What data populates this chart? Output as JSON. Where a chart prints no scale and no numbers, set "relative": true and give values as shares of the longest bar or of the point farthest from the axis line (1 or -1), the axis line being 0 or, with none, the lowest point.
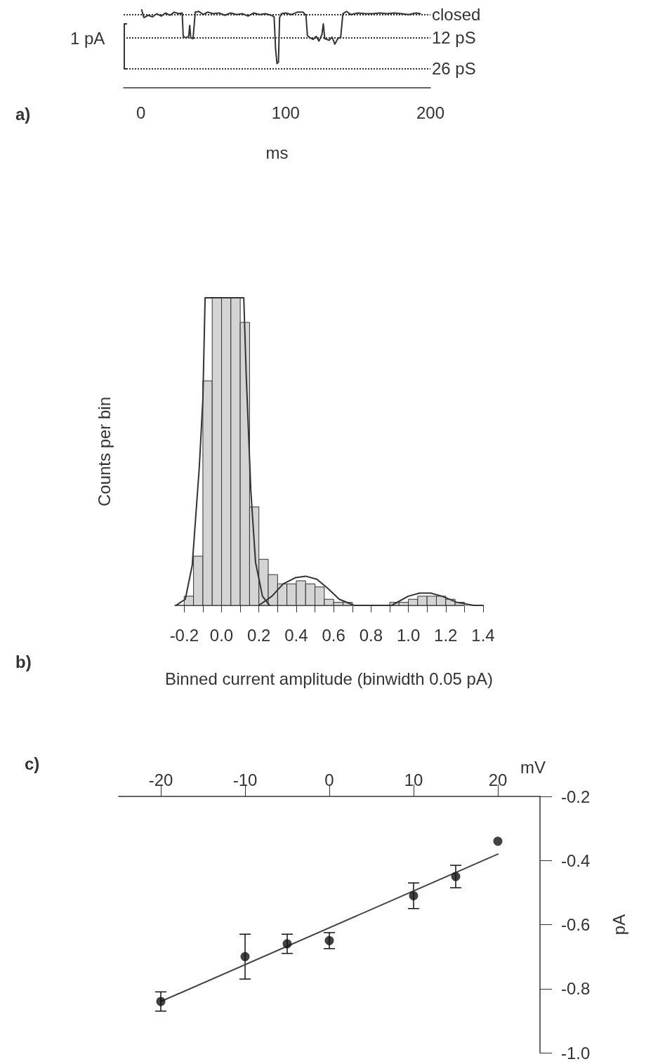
{
  "chart_data": [
    {
      "type": "line",
      "annotations": [
        "a)",
        "1 pA"
      ],
      "xlabel": "ms",
      "relative": true,
      "tick_labels": "x",
      "marker": "none",
      "color": "#333333",
      "xlim": [
        -12,
        200
      ],
      "xticks": [
        0,
        100,
        200
      ],
      "x": [
        0.5,
        2,
        5,
        8,
        11,
        14,
        17,
        20,
        23,
        26,
        28.5,
        29.2,
        31,
        33,
        33.7,
        34.4,
        36,
        37.5,
        40,
        43,
        46,
        50,
        54,
        58,
        62,
        66,
        70,
        74,
        78,
        82,
        86,
        90,
        92,
        93,
        94,
        95,
        95.8,
        97,
        100,
        104,
        108,
        112,
        114,
        115,
        117,
        119,
        121,
        123,
        125,
        126,
        127,
        130,
        132,
        134,
        136,
        138,
        139.5,
        142,
        145,
        150,
        155,
        160,
        165,
        170,
        175,
        180,
        185,
        190,
        193
      ],
      "values": [
        1,
        0.9,
        0.93,
        0.91,
        0.95,
        0.92,
        0.96,
        0.93,
        0.97,
        0.95,
        0.96,
        0.66,
        0.64,
        0.66,
        0.8,
        0.64,
        0.63,
        0.97,
        0.98,
        0.94,
        0.97,
        0.95,
        0.96,
        0.93,
        0.96,
        0.94,
        0.95,
        0.92,
        0.96,
        0.94,
        0.95,
        0.93,
        0.91,
        0.5,
        0.31,
        0.33,
        0.9,
        0.95,
        0.96,
        0.94,
        0.97,
        0.97,
        0.93,
        0.67,
        0.64,
        0.62,
        0.66,
        0.6,
        0.68,
        0.82,
        0.63,
        0.61,
        0.65,
        0.56,
        0.63,
        0.65,
        0.95,
        0.98,
        0.94,
        0.96,
        0.95,
        0.95,
        0.96,
        0.95,
        0.96,
        0.95,
        0.94,
        0.96,
        0.95
      ],
      "ref_lines": [
        {
          "axis": "y",
          "value": 0.94,
          "label": "closed",
          "line_style": "dotted",
          "color": "#333333"
        },
        {
          "axis": "y",
          "value": 0.64,
          "label": "12 pS",
          "line_style": "dotted",
          "color": "#333333"
        },
        {
          "axis": "y",
          "value": 0.25,
          "label": "26 pS",
          "line_style": "dotted",
          "color": "#333333"
        }
      ]
    },
    {
      "type": "histogram",
      "annotations": [
        "b)"
      ],
      "xlabel": "Binned current amplitude (binwidth 0.05 pA)",
      "ylabel": "Counts per bin",
      "relative": true,
      "tick_labels": "x",
      "color": "#d4d4d4",
      "xlim": [
        -0.25,
        1.4
      ],
      "xticks": [
        {
          "value": -0.2,
          "label": "-0.2"
        },
        {
          "value": -0.1,
          "label": null
        },
        {
          "value": 0,
          "label": "0.0"
        },
        {
          "value": 0.1,
          "label": null
        },
        0.2,
        {
          "value": 0.3,
          "label": null
        },
        0.4,
        {
          "value": 0.5,
          "label": null
        },
        0.6,
        {
          "value": 0.7,
          "label": null
        },
        0.8,
        {
          "value": 0.9,
          "label": null
        },
        {
          "value": 1,
          "label": "1.0"
        },
        {
          "value": 1.1,
          "label": null
        },
        1.2,
        {
          "value": 1.3,
          "label": null
        },
        1.4
      ],
      "bins": [
        -0.2,
        -0.15,
        -0.1,
        -0.05,
        0,
        0.05,
        0.1,
        0.15,
        0.2,
        0.25,
        0.3,
        0.35,
        0.4,
        0.45,
        0.5,
        0.55,
        0.6,
        0.65,
        0.7,
        0.75,
        0.8,
        0.85,
        0.9,
        0.95,
        1,
        1.05,
        1.1,
        1.15,
        1.2,
        1.25,
        1.3,
        1.35,
        1.4
      ],
      "values": [
        0.03,
        0.16,
        0.73,
        1,
        1,
        1,
        0.92,
        0.32,
        0.15,
        0.1,
        0.07,
        0.07,
        0.08,
        0.07,
        0.06,
        0.02,
        0.01,
        0.01,
        0,
        0,
        0,
        0,
        0.01,
        0.01,
        0.02,
        0.03,
        0.03,
        0.03,
        0.02,
        0.01,
        0,
        0
      ],
      "series": [
        {
          "type": "line",
          "color": "#333333",
          "x": [
            -0.244,
            -0.194,
            -0.157,
            -0.119,
            -0.1,
            -0.088,
            0.119,
            0.132,
            0.157,
            0.182,
            0.219,
            0.257
          ],
          "values": [
            0,
            0.02,
            0.13,
            0.45,
            0.67,
            1,
            1,
            0.75,
            0.37,
            0.14,
            0.03,
            0
          ]
        },
        {
          "type": "line",
          "color": "#333333",
          "x": [
            0.2,
            0.27,
            0.33,
            0.395,
            0.45,
            0.51,
            0.57,
            0.63,
            0.71,
            0.81,
            0.91,
            1,
            1.06,
            1.12,
            1.18,
            1.26,
            1.35,
            1.4
          ],
          "values": [
            0,
            0.03,
            0.07,
            0.09,
            0.095,
            0.085,
            0.055,
            0.02,
            0,
            0,
            0,
            0.03,
            0.04,
            0.04,
            0.03,
            0.01,
            0,
            0
          ]
        }
      ]
    },
    {
      "type": "scatter",
      "annotations": [
        "c)"
      ],
      "xlabel": "mV",
      "ylabel": "pA",
      "marker": "circle",
      "xlim": [
        -25,
        25
      ],
      "xticks": [
        -20,
        -10,
        0,
        10,
        20
      ],
      "ylim": [
        -1,
        -0.2
      ],
      "yticks": [
        -0.2,
        -0.4,
        -0.6,
        -0.8,
        {
          "value": -1,
          "label": "-1.0"
        }
      ],
      "series": [
        {
          "color": "#111111",
          "x": [
            -20,
            -10,
            -5,
            0,
            10,
            15,
            20
          ],
          "values": [
            -0.84,
            -0.7,
            -0.66,
            -0.65,
            -0.51,
            -0.45,
            -0.34
          ],
          "errors": [
            0.03,
            0.07,
            0.03,
            0.025,
            0.04,
            0.035,
            null
          ]
        },
        {
          "type": "line",
          "color": "#444444",
          "marker": "none",
          "x": [
            -20,
            20
          ],
          "values": [
            -0.84,
            -0.38
          ]
        }
      ]
    }
  ]
}
